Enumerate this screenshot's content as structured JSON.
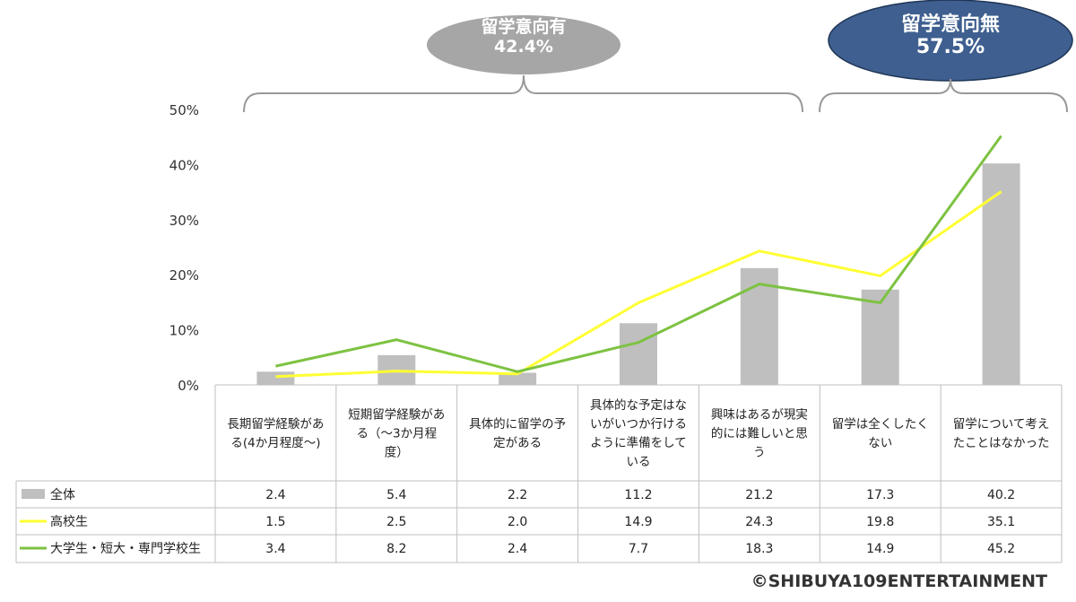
{
  "callouts": {
    "yes": {
      "label": "留学意向有",
      "value": "42.4%",
      "color": "#a6a6a6"
    },
    "no": {
      "label": "留学意向無",
      "value": "57.5%",
      "color": "#3e5f8f"
    }
  },
  "credit": "©SHIBUYA109ENTERTAINMENT",
  "chart_data": {
    "type": "bar+line",
    "ylim": [
      0,
      50
    ],
    "yticks": [
      "0%",
      "10%",
      "20%",
      "30%",
      "40%",
      "50%"
    ],
    "categories": [
      [
        "長期留学経験があ",
        "る(4か月程度～)"
      ],
      [
        "短期留学経験があ",
        "る（～3か月程",
        "度）"
      ],
      [
        "具体的に留学の予",
        "定がある"
      ],
      [
        "具体的な予定はな",
        "いがいつか行ける",
        "ように準備をして",
        "いる"
      ],
      [
        "興味はあるが現実",
        "的には難しいと思",
        "う"
      ],
      [
        "留学は全くしたく",
        "ない"
      ],
      [
        "留学について考え",
        "たことはなかった"
      ]
    ],
    "series": [
      {
        "name": "全体",
        "kind": "bar",
        "color": "#bfbfbf",
        "values": [
          2.4,
          5.4,
          2.2,
          11.2,
          21.2,
          17.3,
          40.2
        ],
        "labels": [
          "2.4",
          "5.4",
          "2.2",
          "11.2",
          "21.2",
          "17.3",
          "40.2"
        ]
      },
      {
        "name": "高校生",
        "kind": "line",
        "color": "#ffff33",
        "values": [
          1.5,
          2.5,
          2.0,
          14.9,
          24.3,
          19.8,
          35.1
        ],
        "labels": [
          "1.5",
          "2.5",
          "2.0",
          "14.9",
          "24.3",
          "19.8",
          "35.1"
        ]
      },
      {
        "name": "大学生・短大・専門学校生",
        "kind": "line",
        "color": "#7dc242",
        "values": [
          3.4,
          8.2,
          2.4,
          7.7,
          18.3,
          14.9,
          45.2
        ],
        "labels": [
          "3.4",
          "8.2",
          "2.4",
          "7.7",
          "18.3",
          "14.9",
          "45.2"
        ]
      }
    ]
  }
}
